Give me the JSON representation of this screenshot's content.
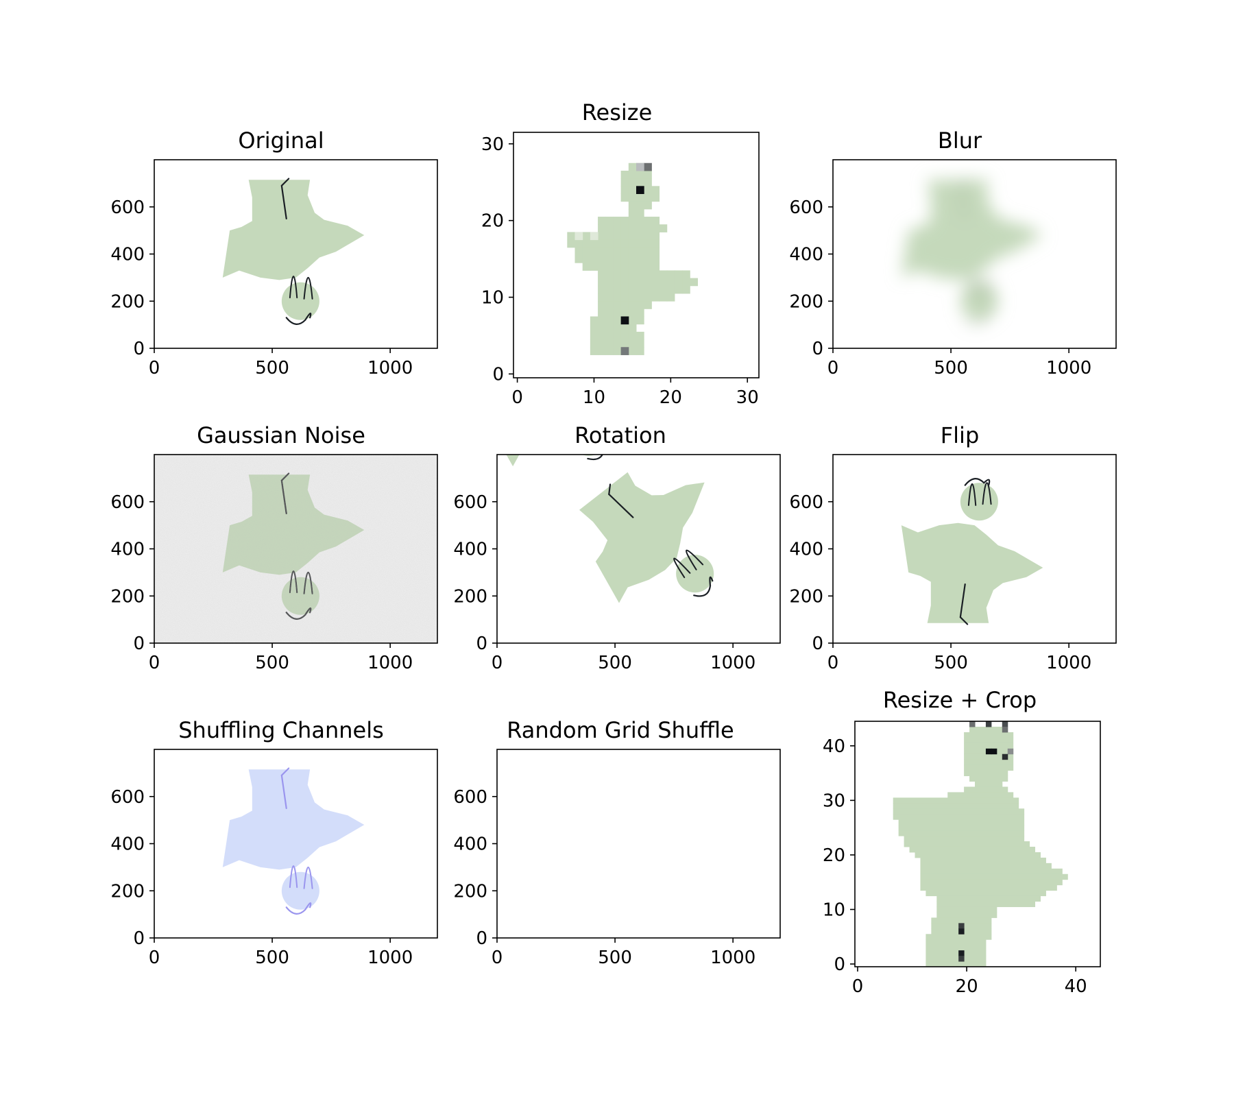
{
  "colors": {
    "figure_fill": "#c5d9bb",
    "ink": "#1a1f24",
    "noise_background": "#f1f1f1",
    "shuffled_fill": "#d3ddfa",
    "shuffled_ink": "#9a95ee",
    "blur_fill": "#c5d9bb"
  },
  "chart_data": [
    {
      "type": "image",
      "title": "Original",
      "x_ticks": [
        "0",
        "500",
        "1000"
      ],
      "y_ticks": [
        "0",
        "200",
        "400",
        "600"
      ],
      "xlim": [
        0,
        1200
      ],
      "ylim": [
        800,
        0
      ]
    },
    {
      "type": "image",
      "title": "Resize",
      "x_ticks": [
        "0",
        "10",
        "20",
        "30"
      ],
      "y_ticks": [
        "0",
        "10",
        "20",
        "30"
      ],
      "xlim": [
        -0.5,
        31.5
      ],
      "ylim": [
        31.5,
        -0.5
      ]
    },
    {
      "type": "image",
      "title": "Blur",
      "x_ticks": [
        "0",
        "500",
        "1000"
      ],
      "y_ticks": [
        "0",
        "200",
        "400",
        "600"
      ],
      "xlim": [
        0,
        1200
      ],
      "ylim": [
        800,
        0
      ]
    },
    {
      "type": "image",
      "title": "Gaussian Noise",
      "x_ticks": [
        "0",
        "500",
        "1000"
      ],
      "y_ticks": [
        "0",
        "200",
        "400",
        "600"
      ],
      "xlim": [
        0,
        1200
      ],
      "ylim": [
        800,
        0
      ]
    },
    {
      "type": "image",
      "title": "Rotation",
      "x_ticks": [
        "0",
        "500",
        "1000"
      ],
      "y_ticks": [
        "0",
        "200",
        "400",
        "600"
      ],
      "xlim": [
        0,
        1200
      ],
      "ylim": [
        800,
        0
      ]
    },
    {
      "type": "image",
      "title": "Flip",
      "x_ticks": [
        "0",
        "500",
        "1000"
      ],
      "y_ticks": [
        "0",
        "200",
        "400",
        "600"
      ],
      "xlim": [
        0,
        1200
      ],
      "ylim": [
        800,
        0
      ]
    },
    {
      "type": "image",
      "title": "Shuffling Channels",
      "x_ticks": [
        "0",
        "500",
        "1000"
      ],
      "y_ticks": [
        "0",
        "200",
        "400",
        "600"
      ],
      "xlim": [
        0,
        1200
      ],
      "ylim": [
        800,
        0
      ]
    },
    {
      "type": "image",
      "title": "Random Grid Shuffle",
      "x_ticks": [
        "0",
        "500",
        "1000"
      ],
      "y_ticks": [
        "0",
        "200",
        "400",
        "600"
      ],
      "xlim": [
        0,
        1200
      ],
      "ylim": [
        800,
        0
      ]
    },
    {
      "type": "image",
      "title": "Resize + Crop",
      "x_ticks": [
        "0",
        "20",
        "40"
      ],
      "y_ticks": [
        "0",
        "10",
        "20",
        "30",
        "40"
      ],
      "xlim": [
        -0.5,
        44.5
      ],
      "ylim": [
        44.5,
        -0.5
      ]
    }
  ]
}
